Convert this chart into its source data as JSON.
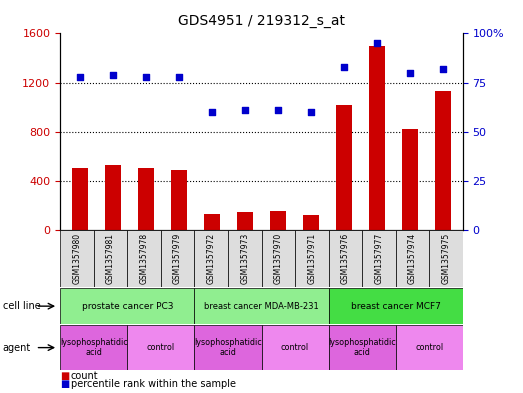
{
  "title": "GDS4951 / 219312_s_at",
  "samples": [
    "GSM1357980",
    "GSM1357981",
    "GSM1357978",
    "GSM1357979",
    "GSM1357972",
    "GSM1357973",
    "GSM1357970",
    "GSM1357971",
    "GSM1357976",
    "GSM1357977",
    "GSM1357974",
    "GSM1357975"
  ],
  "counts": [
    500,
    530,
    500,
    490,
    130,
    145,
    155,
    125,
    1020,
    1500,
    820,
    1130
  ],
  "percentiles": [
    78,
    79,
    78,
    78,
    60,
    61,
    61,
    60,
    83,
    95,
    80,
    82
  ],
  "ylim_left": [
    0,
    1600
  ],
  "ylim_right": [
    0,
    100
  ],
  "yticks_left": [
    0,
    400,
    800,
    1200,
    1600
  ],
  "yticks_right": [
    0,
    25,
    50,
    75,
    100
  ],
  "cell_lines": [
    {
      "label": "prostate cancer PC3",
      "start": 0,
      "end": 4,
      "color": "#90EE90"
    },
    {
      "label": "breast cancer MDA-MB-231",
      "start": 4,
      "end": 8,
      "color": "#90EE90"
    },
    {
      "label": "breast cancer MCF7",
      "start": 8,
      "end": 12,
      "color": "#44DD44"
    }
  ],
  "agents": [
    {
      "label": "lysophosphatidic\nacid",
      "start": 0,
      "end": 2,
      "color": "#DD66DD"
    },
    {
      "label": "control",
      "start": 2,
      "end": 4,
      "color": "#EE88EE"
    },
    {
      "label": "lysophosphatidic\nacid",
      "start": 4,
      "end": 6,
      "color": "#DD66DD"
    },
    {
      "label": "control",
      "start": 6,
      "end": 8,
      "color": "#EE88EE"
    },
    {
      "label": "lysophosphatidic\nacid",
      "start": 8,
      "end": 10,
      "color": "#DD66DD"
    },
    {
      "label": "control",
      "start": 10,
      "end": 12,
      "color": "#EE88EE"
    }
  ],
  "bar_color": "#CC0000",
  "dot_color": "#0000CC",
  "bar_width": 0.5,
  "sample_box_color": "#DDDDDD",
  "tick_label_color_left": "#CC0000",
  "tick_label_color_right": "#0000CC",
  "grid_dotline_color": "black",
  "border_color": "black"
}
